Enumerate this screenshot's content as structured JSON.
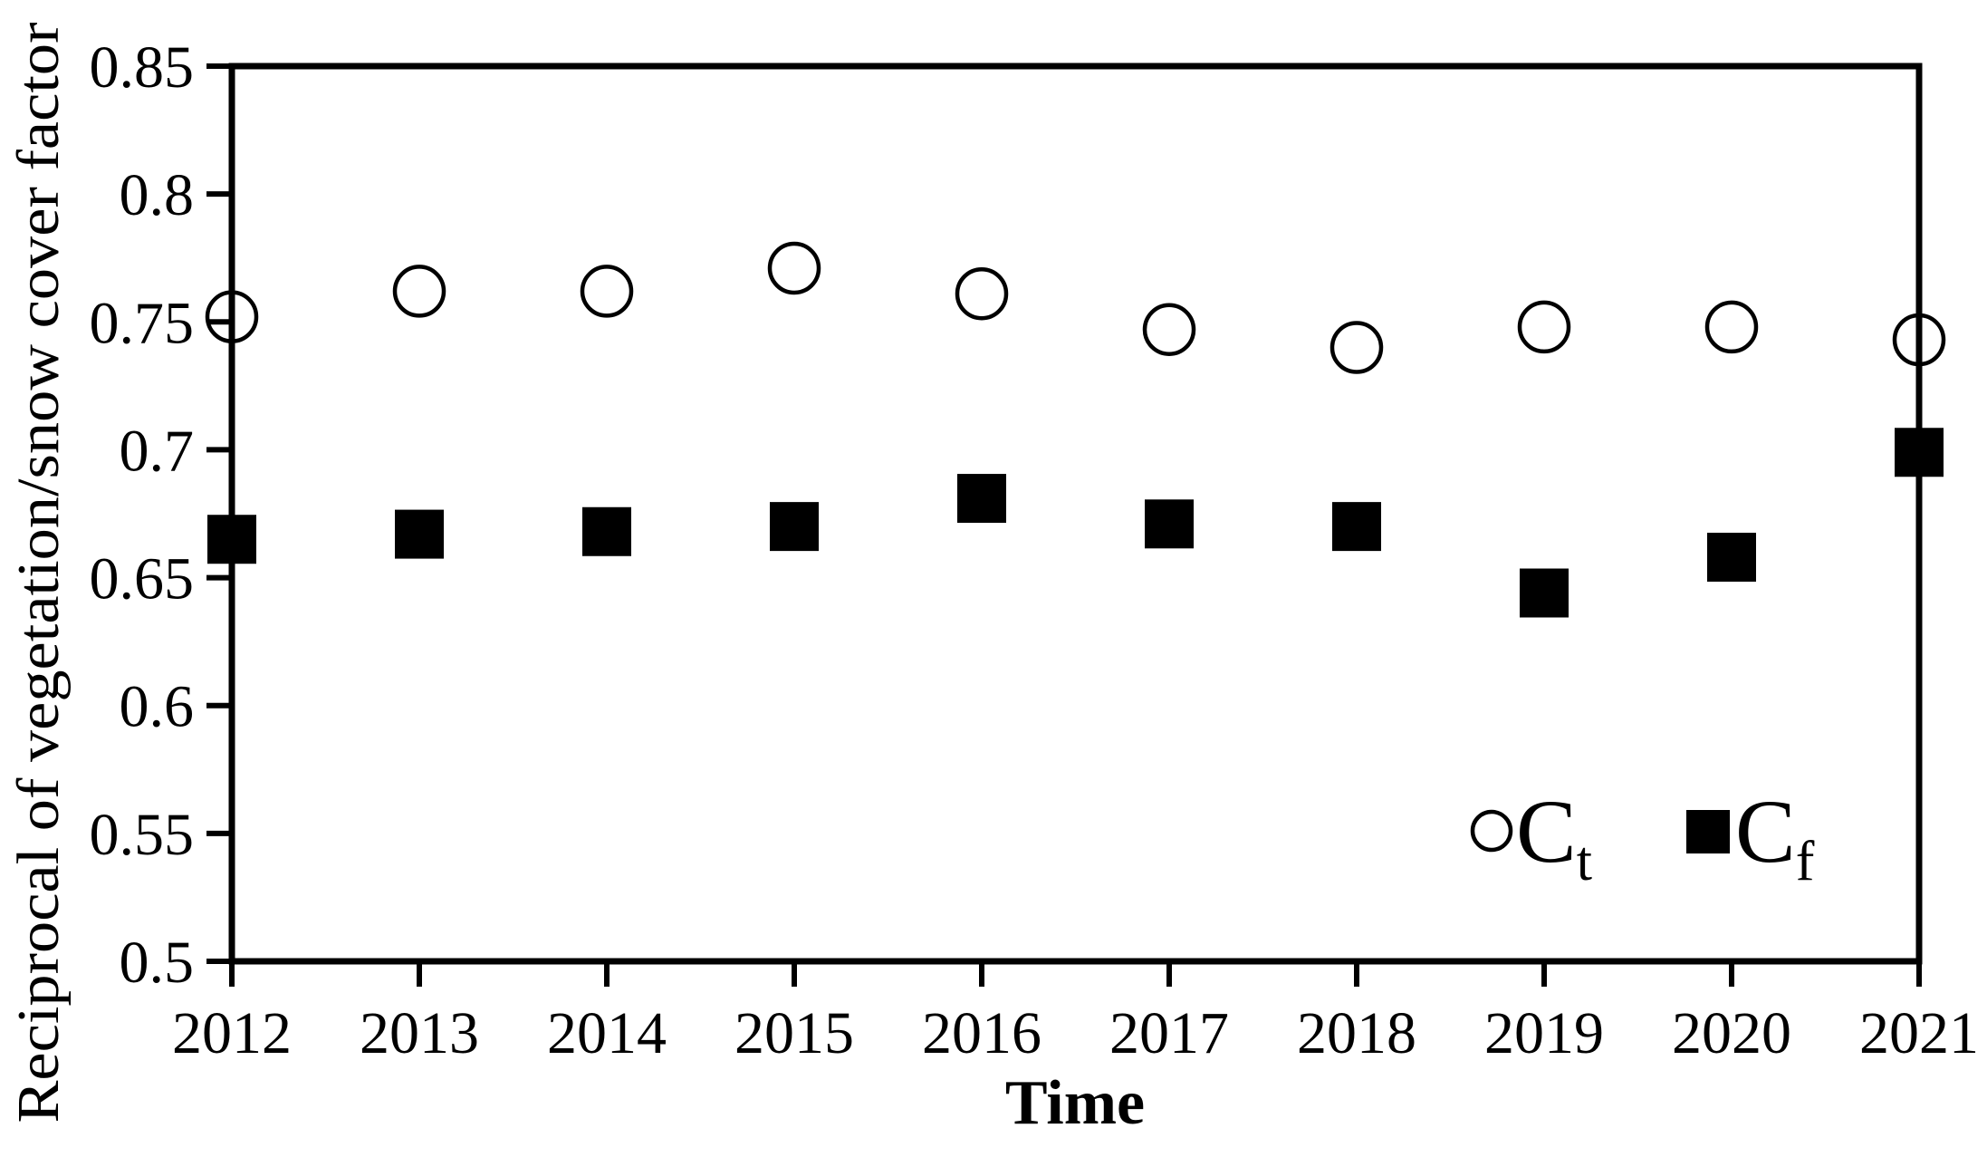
{
  "chart_data": {
    "type": "scatter",
    "title": "",
    "xlabel": "Time",
    "ylabel": "Reciprocal of vegetation/snow cover factor",
    "x": [
      "2012",
      "2013",
      "2014",
      "2015",
      "2016",
      "2017",
      "2018",
      "2019",
      "2020",
      "2021"
    ],
    "series": [
      {
        "name": "Ct",
        "legend_label": "C",
        "legend_subscript": "t",
        "marker": "open-circle",
        "values": [
          0.752,
          0.762,
          0.762,
          0.771,
          0.761,
          0.747,
          0.74,
          0.748,
          0.748,
          0.743
        ]
      },
      {
        "name": "Cf",
        "legend_label": "C",
        "legend_subscript": "f",
        "marker": "filled-square",
        "values": [
          0.665,
          0.667,
          0.668,
          0.67,
          0.681,
          0.671,
          0.67,
          0.644,
          0.658,
          0.699
        ]
      }
    ],
    "ylim": [
      0.5,
      0.85
    ],
    "yticks": [
      0.5,
      0.55,
      0.6,
      0.65,
      0.7,
      0.75,
      0.8,
      0.85
    ],
    "ytick_labels": [
      "0.5",
      "0.55",
      "0.6",
      "0.65",
      "0.7",
      "0.75",
      "0.8",
      "0.85"
    ],
    "grid": false,
    "legend_position": "inside-bottom-right",
    "colors": {
      "foreground": "#000000",
      "background": "#ffffff"
    }
  }
}
